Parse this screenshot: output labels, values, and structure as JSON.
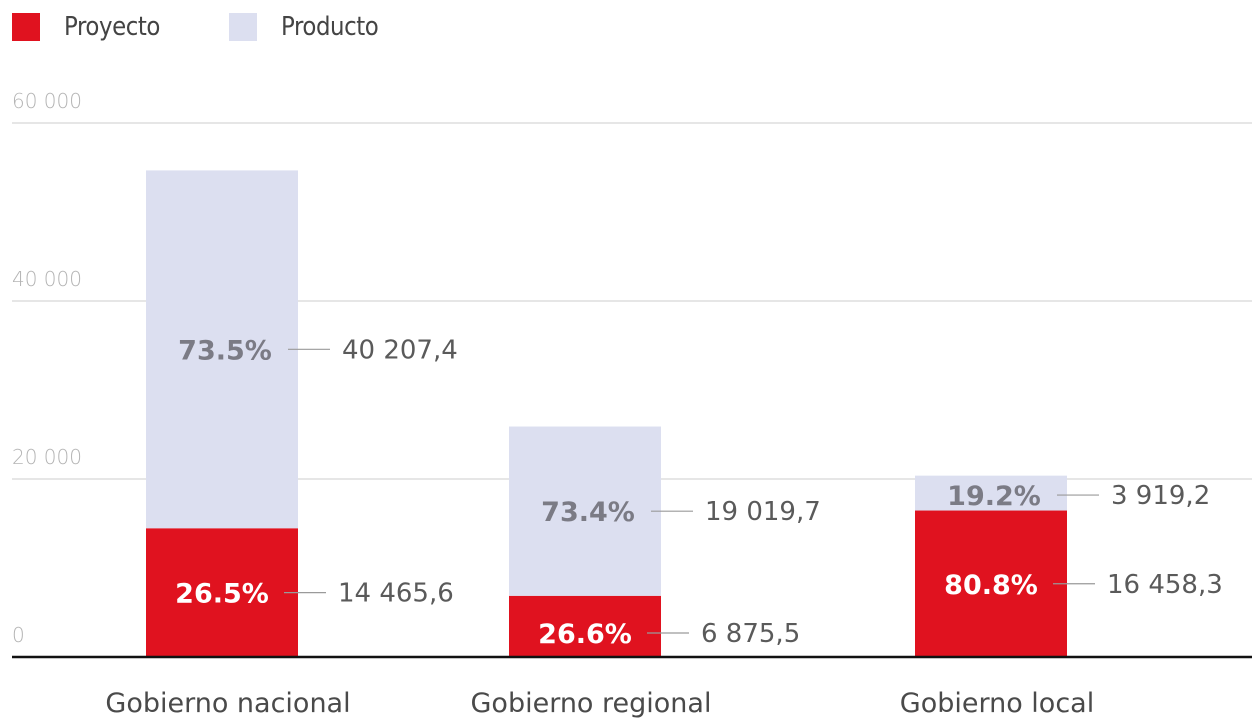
{
  "chart_data": {
    "type": "bar",
    "stacked": true,
    "categories": [
      "Gobierno nacional",
      "Gobierno regional",
      "Gobierno local"
    ],
    "series": [
      {
        "name": "Proyecto",
        "color": "#e0121f",
        "values": [
          14465.6,
          6875.5,
          16458.3
        ],
        "value_labels": [
          "14 465,6",
          "6 875,5",
          "16 458,3"
        ],
        "percent_labels": [
          "26.5%",
          "26.6%",
          "80.8%"
        ]
      },
      {
        "name": "Producto",
        "color": "#dcdff0",
        "values": [
          40207.4,
          19019.7,
          3919.2
        ],
        "value_labels": [
          "40 207,4",
          "19 019,7",
          "3 919,2"
        ],
        "percent_labels": [
          "73.5%",
          "73.4%",
          "19.2%"
        ]
      }
    ],
    "ylim": [
      0,
      60000
    ],
    "yticks": [
      0,
      20000,
      40000,
      60000
    ],
    "ytick_labels": [
      "0",
      "20 000",
      "40 000",
      "60 000"
    ],
    "grid": true,
    "legend_position": "top-left"
  }
}
